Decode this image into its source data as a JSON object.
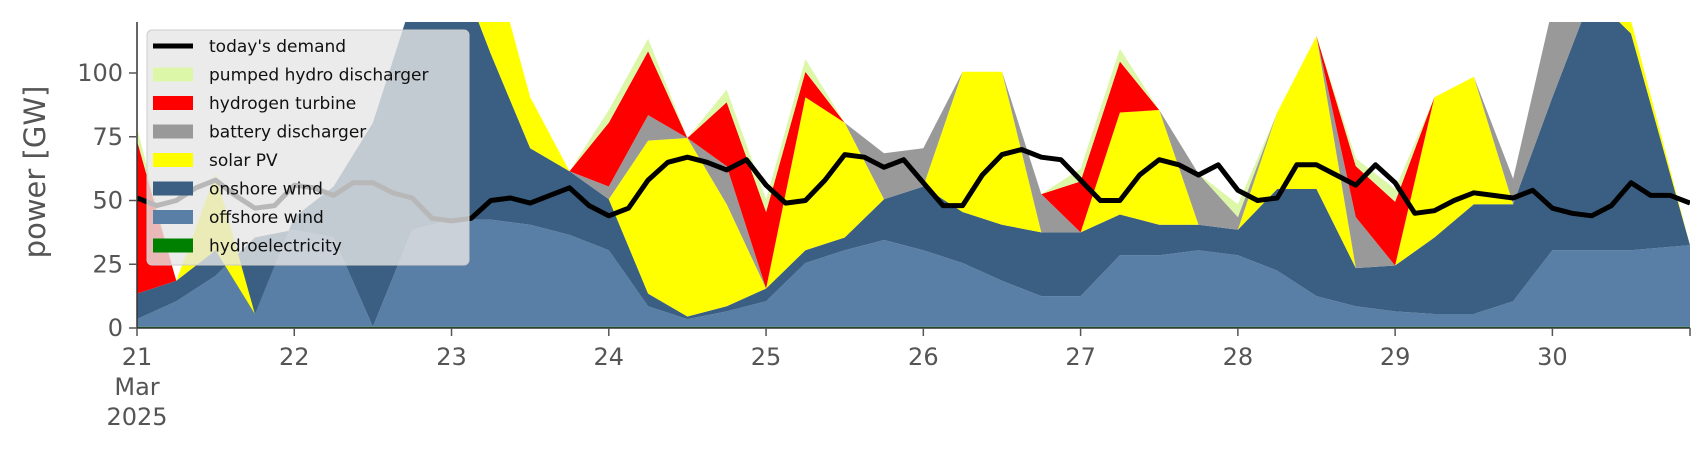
{
  "chart_data": {
    "type": "area",
    "title": "",
    "ylabel": "power [GW]",
    "xlabel": "",
    "ylim": [
      0,
      120
    ],
    "xlim": [
      "2025-03-21T00:00",
      "2025-03-30T21:00"
    ],
    "yticks": [
      0,
      25,
      50,
      75,
      100
    ],
    "xticks": [
      {
        "date": "2025-03-21",
        "label": "21",
        "sub1": "Mar",
        "sub2": "2025"
      },
      {
        "date": "2025-03-22",
        "label": "22"
      },
      {
        "date": "2025-03-23",
        "label": "23"
      },
      {
        "date": "2025-03-24",
        "label": "24"
      },
      {
        "date": "2025-03-25",
        "label": "25"
      },
      {
        "date": "2025-03-26",
        "label": "26"
      },
      {
        "date": "2025-03-27",
        "label": "27"
      },
      {
        "date": "2025-03-28",
        "label": "28"
      },
      {
        "date": "2025-03-29",
        "label": "29"
      },
      {
        "date": "2025-03-30",
        "label": "30"
      }
    ],
    "legend_position": "top-left",
    "grid": false,
    "x": [
      "2025-03-21T00:00",
      "2025-03-21T06:00",
      "2025-03-21T12:00",
      "2025-03-21T18:00",
      "2025-03-22T00:00",
      "2025-03-22T06:00",
      "2025-03-22T12:00",
      "2025-03-22T18:00",
      "2025-03-23T00:00",
      "2025-03-23T06:00",
      "2025-03-23T12:00",
      "2025-03-23T18:00",
      "2025-03-24T00:00",
      "2025-03-24T06:00",
      "2025-03-24T12:00",
      "2025-03-24T18:00",
      "2025-03-25T00:00",
      "2025-03-25T06:00",
      "2025-03-25T12:00",
      "2025-03-25T18:00",
      "2025-03-26T00:00",
      "2025-03-26T06:00",
      "2025-03-26T12:00",
      "2025-03-26T18:00",
      "2025-03-27T00:00",
      "2025-03-27T06:00",
      "2025-03-27T12:00",
      "2025-03-27T18:00",
      "2025-03-28T00:00",
      "2025-03-28T06:00",
      "2025-03-28T12:00",
      "2025-03-28T18:00",
      "2025-03-29T00:00",
      "2025-03-29T06:00",
      "2025-03-29T12:00",
      "2025-03-29T18:00",
      "2025-03-30T00:00",
      "2025-03-30T06:00",
      "2025-03-30T12:00",
      "2025-03-30T21:00"
    ],
    "series": [
      {
        "name": "hydroelectricity",
        "color": "#008000",
        "values": [
          0.5,
          0.5,
          0.5,
          0.5,
          0.5,
          0.5,
          0.5,
          0.5,
          0.5,
          0.5,
          0.5,
          0.5,
          0.5,
          0.5,
          0.5,
          0.5,
          0.5,
          0.5,
          0.5,
          0.5,
          0.5,
          0.5,
          0.5,
          0.5,
          0.5,
          0.5,
          0.5,
          0.5,
          0.5,
          0.5,
          0.5,
          0.5,
          0.5,
          0.5,
          0.5,
          0.5,
          0.5,
          0.5,
          0.5,
          0.5
        ]
      },
      {
        "name": "offshore wind",
        "color": "#5a7fa6",
        "values": [
          3,
          10,
          20,
          35,
          38,
          35,
          0,
          38,
          42,
          42,
          40,
          36,
          30,
          8,
          3,
          6,
          10,
          25,
          30,
          34,
          30,
          25,
          18,
          12,
          12,
          28,
          28,
          30,
          28,
          22,
          12,
          8,
          6,
          5,
          5,
          10,
          30,
          30,
          30,
          32
        ]
      },
      {
        "name": "onshore wind",
        "color": "#3a5f82",
        "values": [
          10,
          8,
          10,
          -30,
          5,
          20,
          80,
          90,
          105,
          65,
          30,
          25,
          20,
          5,
          1,
          2,
          5,
          5,
          5,
          16,
          25,
          20,
          22,
          25,
          25,
          16,
          12,
          10,
          10,
          32,
          42,
          15,
          18,
          30,
          43,
          38,
          60,
          100,
          85,
          0
        ]
      },
      {
        "name": "solar PV",
        "color": "#ffff00",
        "values": [
          0,
          0,
          30,
          0,
          0,
          0,
          0,
          0,
          0,
          40,
          20,
          0,
          0,
          60,
          70,
          40,
          0,
          60,
          45,
          0,
          0,
          55,
          60,
          0,
          0,
          40,
          45,
          0,
          0,
          30,
          60,
          0,
          0,
          55,
          50,
          0,
          0,
          0,
          5,
          0
        ]
      },
      {
        "name": "battery discharger",
        "color": "#999999",
        "values": [
          0,
          0,
          0,
          0,
          0,
          0,
          0,
          0,
          0,
          0,
          0,
          0,
          5,
          10,
          0,
          15,
          0,
          0,
          0,
          18,
          15,
          0,
          0,
          15,
          0,
          0,
          0,
          20,
          5,
          0,
          0,
          20,
          0,
          0,
          0,
          10,
          35,
          0,
          0,
          0
        ]
      },
      {
        "name": "hydrogen turbine",
        "color": "#ff0000",
        "values": [
          60,
          0,
          0,
          0,
          0,
          0,
          0,
          0,
          0,
          0,
          0,
          0,
          25,
          25,
          0,
          25,
          30,
          10,
          0,
          0,
          0,
          0,
          0,
          0,
          20,
          20,
          0,
          0,
          0,
          0,
          0,
          20,
          25,
          0,
          0,
          0,
          0,
          0,
          0,
          0
        ]
      },
      {
        "name": "pumped hydro discharger",
        "color": "#ddf7a8",
        "values": [
          5,
          0,
          0,
          0,
          0,
          0,
          0,
          0,
          0,
          0,
          0,
          0,
          5,
          5,
          0,
          5,
          5,
          5,
          0,
          0,
          0,
          0,
          0,
          0,
          5,
          5,
          0,
          0,
          5,
          0,
          0,
          3,
          5,
          0,
          0,
          0,
          0,
          0,
          0,
          0
        ]
      }
    ],
    "demand": {
      "name": "today's demand",
      "color": "#000000",
      "x": [
        "2025-03-21T00:00",
        "2025-03-21T03:00",
        "2025-03-21T06:00",
        "2025-03-21T09:00",
        "2025-03-21T12:00",
        "2025-03-21T15:00",
        "2025-03-21T18:00",
        "2025-03-21T21:00",
        "2025-03-22T00:00",
        "2025-03-22T03:00",
        "2025-03-22T06:00",
        "2025-03-22T09:00",
        "2025-03-22T12:00",
        "2025-03-22T15:00",
        "2025-03-22T18:00",
        "2025-03-22T21:00",
        "2025-03-23T00:00",
        "2025-03-23T03:00",
        "2025-03-23T06:00",
        "2025-03-23T09:00",
        "2025-03-23T12:00",
        "2025-03-23T15:00",
        "2025-03-23T18:00",
        "2025-03-23T21:00",
        "2025-03-24T00:00",
        "2025-03-24T03:00",
        "2025-03-24T06:00",
        "2025-03-24T09:00",
        "2025-03-24T12:00",
        "2025-03-24T15:00",
        "2025-03-24T18:00",
        "2025-03-24T21:00",
        "2025-03-25T00:00",
        "2025-03-25T03:00",
        "2025-03-25T06:00",
        "2025-03-25T09:00",
        "2025-03-25T12:00",
        "2025-03-25T15:00",
        "2025-03-25T18:00",
        "2025-03-25T21:00",
        "2025-03-26T00:00",
        "2025-03-26T03:00",
        "2025-03-26T06:00",
        "2025-03-26T09:00",
        "2025-03-26T12:00",
        "2025-03-26T15:00",
        "2025-03-26T18:00",
        "2025-03-26T21:00",
        "2025-03-27T00:00",
        "2025-03-27T03:00",
        "2025-03-27T06:00",
        "2025-03-27T09:00",
        "2025-03-27T12:00",
        "2025-03-27T15:00",
        "2025-03-27T18:00",
        "2025-03-27T21:00",
        "2025-03-28T00:00",
        "2025-03-28T03:00",
        "2025-03-28T06:00",
        "2025-03-28T09:00",
        "2025-03-28T12:00",
        "2025-03-28T15:00",
        "2025-03-28T18:00",
        "2025-03-28T21:00",
        "2025-03-29T00:00",
        "2025-03-29T03:00",
        "2025-03-29T06:00",
        "2025-03-29T09:00",
        "2025-03-29T12:00",
        "2025-03-29T15:00",
        "2025-03-29T18:00",
        "2025-03-29T21:00",
        "2025-03-30T00:00",
        "2025-03-30T03:00",
        "2025-03-30T06:00",
        "2025-03-30T09:00",
        "2025-03-30T12:00",
        "2025-03-30T15:00",
        "2025-03-30T18:00",
        "2025-03-30T21:00"
      ],
      "values": [
        51,
        48,
        50,
        55,
        58,
        52,
        47,
        48,
        56,
        55,
        52,
        57,
        57,
        53,
        51,
        43,
        42,
        43,
        50,
        51,
        49,
        52,
        55,
        48,
        44,
        47,
        58,
        65,
        67,
        65,
        62,
        66,
        56,
        49,
        50,
        58,
        68,
        67,
        63,
        66,
        57,
        48,
        48,
        60,
        68,
        70,
        67,
        66,
        58,
        50,
        50,
        60,
        66,
        64,
        60,
        64,
        54,
        50,
        51,
        64,
        64,
        60,
        56,
        64,
        57,
        45,
        46,
        50,
        53,
        52,
        51,
        54,
        47,
        45,
        44,
        48,
        57,
        52,
        52,
        49
      ]
    },
    "legend_order": [
      "today's demand",
      "pumped hydro discharger",
      "hydrogen turbine",
      "battery discharger",
      "solar PV",
      "onshore wind",
      "offshore wind",
      "hydroelectricity"
    ]
  }
}
